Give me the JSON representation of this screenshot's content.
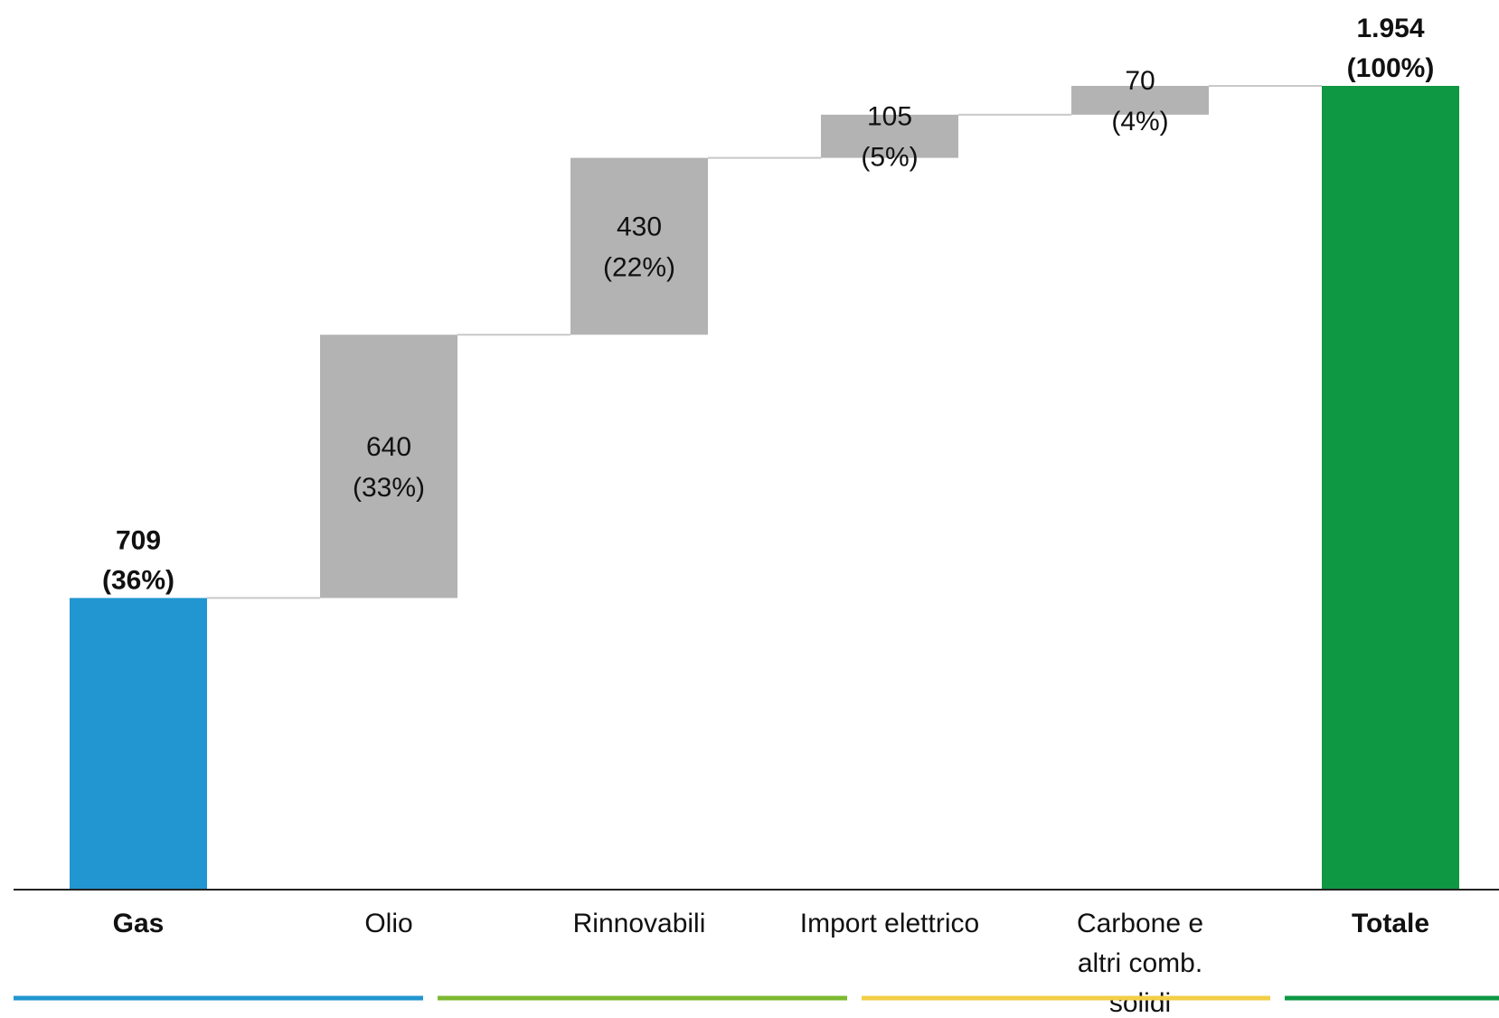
{
  "chart_data": {
    "type": "bar",
    "subtype": "waterfall",
    "categories": [
      "Gas",
      "Olio",
      "Rinnovabili",
      "Import elettrico",
      "Carbone e altri comb. solidi",
      "Totale"
    ],
    "category_lines": [
      [
        "Gas"
      ],
      [
        "Olio"
      ],
      [
        "Rinnovabili"
      ],
      [
        "Import elettrico"
      ],
      [
        "Carbone e",
        "altri comb.",
        "solidi"
      ],
      [
        "Totale"
      ]
    ],
    "values": [
      709,
      640,
      430,
      105,
      70,
      1954
    ],
    "kinds": [
      "total",
      "delta",
      "delta",
      "delta",
      "delta",
      "total"
    ],
    "value_labels": [
      "709",
      "640",
      "430",
      "105",
      "70",
      "1.954"
    ],
    "percent_labels": [
      "(36%)",
      "(33%)",
      "(22%)",
      "(5%)",
      "(4%)",
      "(100%)"
    ],
    "bold_labels": [
      true,
      false,
      false,
      false,
      false,
      true
    ],
    "bold_categories": [
      true,
      false,
      false,
      false,
      false,
      true
    ],
    "ylim": [
      0,
      2000
    ],
    "grid": false,
    "colors": {
      "Gas": "#2196D0",
      "delta": "#B3B3B3",
      "Totale": "#0E9843",
      "connector": "#C8C8C8",
      "axis": "#222222",
      "group_lines": [
        "#2196D0",
        "#7CB932",
        "#F2CF47",
        "#0E9843"
      ]
    }
  }
}
